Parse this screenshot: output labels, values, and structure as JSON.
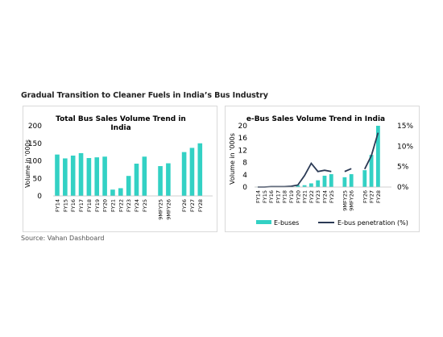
{
  "figure": {
    "title": "Gradual Transition to Cleaner Fuels in India’s Bus Industry",
    "source": "Source: Vahan Dashboard"
  },
  "colors": {
    "bar": "#33d1c4",
    "line": "#2b3a55",
    "axis": "#bfbfbf"
  },
  "chart_data": [
    {
      "type": "bar",
      "title": "Total Bus Sales Volume Trend in India",
      "ylabel": "Volume in '000s",
      "ylim": [
        0,
        200
      ],
      "yticks": [
        "0",
        "50",
        "100",
        "150",
        "200"
      ],
      "categories": [
        "FY14",
        "FY15",
        "FY16",
        "FY17",
        "FY18",
        "FY19",
        "FY20",
        "FY21",
        "FY22",
        "FY23",
        "FY24",
        "FY25",
        "9MFY25",
        "9MFY26",
        "FY26",
        "FY27",
        "FY28"
      ],
      "values": [
        118,
        107,
        115,
        122,
        108,
        110,
        112,
        18,
        22,
        57,
        92,
        112,
        85,
        93,
        125,
        137,
        150
      ],
      "grid": false,
      "legend": "none"
    },
    {
      "type": "bar+line",
      "title": "e-Bus Sales Volume Trend in India",
      "ylabel": "Volume in '000s",
      "ylim": [
        0,
        20
      ],
      "y2lim": [
        0,
        15
      ],
      "yticks": [
        "0",
        "4",
        "8",
        "12",
        "16",
        "20"
      ],
      "y2ticks": [
        "0%",
        "5%",
        "10%",
        "15%"
      ],
      "categories": [
        "FY14",
        "FY15",
        "FY16",
        "FY17",
        "FY18",
        "FY19",
        "FY20",
        "FY21",
        "FY22",
        "FY23",
        "FY24",
        "FY25",
        "9MFY25",
        "9MFY26",
        "FY26",
        "FY27",
        "FY28"
      ],
      "series": [
        {
          "name": "E-buses",
          "kind": "bar",
          "axis": "left",
          "values": [
            0.05,
            0.05,
            0.05,
            0.1,
            0.1,
            0.2,
            0.6,
            0.6,
            1.2,
            2.2,
            3.7,
            4.2,
            3.2,
            4.2,
            5.5,
            10.5,
            20.0
          ]
        },
        {
          "name": "E-bus penetration (%)",
          "kind": "line",
          "axis": "right",
          "values": [
            0.0,
            0.0,
            0.1,
            0.1,
            0.1,
            0.2,
            0.5,
            2.8,
            5.8,
            3.8,
            4.1,
            3.8,
            3.8,
            4.5,
            4.4,
            7.7,
            13.3
          ],
          "segments": [
            [
              0,
              11
            ],
            [
              12,
              13
            ],
            [
              14,
              16
            ]
          ]
        }
      ],
      "legend": "bottom"
    }
  ]
}
